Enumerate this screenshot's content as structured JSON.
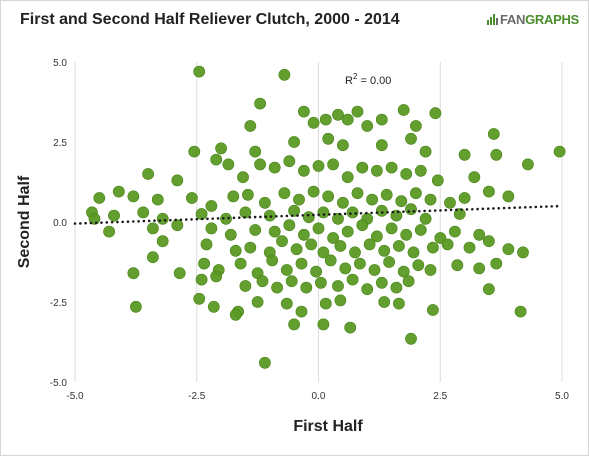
{
  "title": "First and Second Half Reliever Clutch, 2000 - 2014",
  "brand": {
    "part1": "FAN",
    "part2": "GRAPHS",
    "icon": "fangraphs-logo-icon"
  },
  "colors": {
    "point": "#5a9a24",
    "point_edge": "#4a8419",
    "grid": "#dcdcdc",
    "trend": "#1a1a1a",
    "brand_green": "#4a8f2c",
    "brand_gray": "#6c6c6c"
  },
  "chart_data": {
    "type": "scatter",
    "title": "First and Second Half Reliever Clutch, 2000 - 2014",
    "xlabel": "First Half",
    "ylabel": "Second Half",
    "xlim": [
      -5,
      5
    ],
    "ylim": [
      -5,
      5
    ],
    "xticks": [
      "-5.0",
      "-2.5",
      "0.0",
      "2.5",
      "5.0"
    ],
    "yticks": [
      "5.0",
      "2.5",
      "0.0",
      "-2.5",
      "-5.0"
    ],
    "grid": "vertical",
    "annotation": {
      "prefix": "R",
      "sup": "2",
      "suffix": " = 0.00"
    },
    "trendline": {
      "style": "dotted",
      "x": [
        -5,
        5
      ],
      "y": [
        -0.05,
        0.5
      ]
    },
    "points": [
      [
        -2.45,
        4.7
      ],
      [
        -0.7,
        4.6
      ],
      [
        -1.2,
        3.7
      ],
      [
        -0.3,
        3.45
      ],
      [
        0.4,
        3.35
      ],
      [
        0.8,
        3.45
      ],
      [
        1.75,
        3.5
      ],
      [
        2.4,
        3.4
      ],
      [
        -1.4,
        3.0
      ],
      [
        -0.1,
        3.1
      ],
      [
        0.15,
        3.2
      ],
      [
        0.6,
        3.2
      ],
      [
        1.0,
        3.0
      ],
      [
        1.3,
        3.2
      ],
      [
        2.0,
        3.0
      ],
      [
        3.6,
        2.75
      ],
      [
        -2.55,
        2.2
      ],
      [
        -2.0,
        2.3
      ],
      [
        -1.3,
        2.2
      ],
      [
        -0.5,
        2.5
      ],
      [
        0.2,
        2.6
      ],
      [
        0.5,
        2.4
      ],
      [
        1.3,
        2.4
      ],
      [
        1.9,
        2.6
      ],
      [
        2.2,
        2.2
      ],
      [
        3.0,
        2.1
      ],
      [
        3.65,
        2.1
      ],
      [
        -3.5,
        1.5
      ],
      [
        -2.9,
        1.3
      ],
      [
        -2.1,
        1.95
      ],
      [
        -1.85,
        1.8
      ],
      [
        -1.55,
        1.4
      ],
      [
        -1.2,
        1.8
      ],
      [
        -0.9,
        1.7
      ],
      [
        -0.6,
        1.9
      ],
      [
        -0.3,
        1.6
      ],
      [
        0.0,
        1.75
      ],
      [
        0.3,
        1.8
      ],
      [
        0.6,
        1.4
      ],
      [
        0.9,
        1.7
      ],
      [
        1.2,
        1.6
      ],
      [
        1.5,
        1.7
      ],
      [
        1.8,
        1.5
      ],
      [
        2.1,
        1.6
      ],
      [
        2.45,
        1.3
      ],
      [
        3.2,
        1.4
      ],
      [
        4.3,
        1.8
      ],
      [
        4.95,
        2.2
      ],
      [
        -4.5,
        0.75
      ],
      [
        -4.1,
        0.95
      ],
      [
        -3.8,
        0.8
      ],
      [
        -3.3,
        0.7
      ],
      [
        -2.6,
        0.75
      ],
      [
        -2.2,
        0.5
      ],
      [
        -1.75,
        0.8
      ],
      [
        -1.45,
        0.85
      ],
      [
        -1.1,
        0.6
      ],
      [
        -0.7,
        0.9
      ],
      [
        -0.4,
        0.7
      ],
      [
        -0.1,
        0.95
      ],
      [
        0.2,
        0.8
      ],
      [
        0.5,
        0.6
      ],
      [
        0.8,
        0.9
      ],
      [
        1.1,
        0.7
      ],
      [
        1.4,
        0.85
      ],
      [
        1.7,
        0.65
      ],
      [
        2.0,
        0.9
      ],
      [
        2.3,
        0.7
      ],
      [
        2.7,
        0.6
      ],
      [
        3.0,
        0.75
      ],
      [
        3.5,
        0.95
      ],
      [
        3.9,
        0.8
      ],
      [
        -4.65,
        0.3
      ],
      [
        -4.2,
        0.2
      ],
      [
        -3.6,
        0.3
      ],
      [
        -3.2,
        0.1
      ],
      [
        -2.4,
        0.25
      ],
      [
        -1.9,
        0.1
      ],
      [
        -1.5,
        0.3
      ],
      [
        -1.0,
        0.2
      ],
      [
        -0.5,
        0.35
      ],
      [
        -0.2,
        0.15
      ],
      [
        0.1,
        0.3
      ],
      [
        0.4,
        0.1
      ],
      [
        0.7,
        0.3
      ],
      [
        1.0,
        0.1
      ],
      [
        1.3,
        0.35
      ],
      [
        1.6,
        0.2
      ],
      [
        1.9,
        0.4
      ],
      [
        2.2,
        0.1
      ],
      [
        2.9,
        0.25
      ],
      [
        -4.6,
        0.1
      ],
      [
        -4.3,
        -0.3
      ],
      [
        -3.4,
        -0.2
      ],
      [
        -2.9,
        -0.1
      ],
      [
        -2.2,
        -0.2
      ],
      [
        -1.8,
        -0.4
      ],
      [
        -1.3,
        -0.25
      ],
      [
        -0.9,
        -0.3
      ],
      [
        -0.6,
        -0.1
      ],
      [
        -0.3,
        -0.4
      ],
      [
        0.0,
        -0.2
      ],
      [
        0.3,
        -0.5
      ],
      [
        0.6,
        -0.3
      ],
      [
        0.9,
        -0.1
      ],
      [
        1.2,
        -0.45
      ],
      [
        1.5,
        -0.2
      ],
      [
        1.8,
        -0.4
      ],
      [
        2.1,
        -0.25
      ],
      [
        2.5,
        -0.5
      ],
      [
        2.8,
        -0.3
      ],
      [
        3.3,
        -0.4
      ],
      [
        -3.2,
        -0.6
      ],
      [
        -2.3,
        -0.7
      ],
      [
        -1.7,
        -0.9
      ],
      [
        -1.4,
        -0.8
      ],
      [
        -1.0,
        -0.95
      ],
      [
        -0.75,
        -0.6
      ],
      [
        -0.45,
        -0.85
      ],
      [
        -0.15,
        -0.7
      ],
      [
        0.1,
        -0.95
      ],
      [
        0.45,
        -0.75
      ],
      [
        0.75,
        -0.95
      ],
      [
        1.05,
        -0.7
      ],
      [
        1.35,
        -0.9
      ],
      [
        1.65,
        -0.75
      ],
      [
        1.95,
        -0.95
      ],
      [
        2.35,
        -0.8
      ],
      [
        2.65,
        -0.7
      ],
      [
        3.1,
        -0.8
      ],
      [
        3.5,
        -0.6
      ],
      [
        3.9,
        -0.85
      ],
      [
        4.2,
        -0.95
      ],
      [
        -3.4,
        -1.1
      ],
      [
        -2.85,
        -1.6
      ],
      [
        -2.35,
        -1.3
      ],
      [
        -2.05,
        -1.5
      ],
      [
        -1.6,
        -1.3
      ],
      [
        -1.25,
        -1.6
      ],
      [
        -0.95,
        -1.2
      ],
      [
        -0.65,
        -1.5
      ],
      [
        -0.35,
        -1.3
      ],
      [
        -0.05,
        -1.55
      ],
      [
        0.25,
        -1.2
      ],
      [
        0.55,
        -1.45
      ],
      [
        0.85,
        -1.3
      ],
      [
        1.15,
        -1.5
      ],
      [
        1.45,
        -1.25
      ],
      [
        1.75,
        -1.55
      ],
      [
        2.05,
        -1.35
      ],
      [
        2.3,
        -1.5
      ],
      [
        2.85,
        -1.35
      ],
      [
        3.3,
        -1.45
      ],
      [
        3.65,
        -1.3
      ],
      [
        -3.8,
        -1.6
      ],
      [
        -2.4,
        -1.8
      ],
      [
        -2.1,
        -1.7
      ],
      [
        -1.5,
        -2.0
      ],
      [
        -1.15,
        -1.85
      ],
      [
        -0.85,
        -2.05
      ],
      [
        -0.55,
        -1.85
      ],
      [
        -0.25,
        -2.05
      ],
      [
        0.05,
        -1.9
      ],
      [
        0.4,
        -2.0
      ],
      [
        0.7,
        -1.8
      ],
      [
        1.0,
        -2.1
      ],
      [
        1.3,
        -1.9
      ],
      [
        1.6,
        -2.05
      ],
      [
        1.85,
        -1.85
      ],
      [
        3.5,
        -2.1
      ],
      [
        -3.75,
        -2.65
      ],
      [
        -2.45,
        -2.4
      ],
      [
        -2.15,
        -2.65
      ],
      [
        -1.65,
        -2.8
      ],
      [
        -1.25,
        -2.5
      ],
      [
        -0.65,
        -2.55
      ],
      [
        -0.35,
        -2.8
      ],
      [
        0.15,
        -2.55
      ],
      [
        0.45,
        -2.45
      ],
      [
        1.35,
        -2.5
      ],
      [
        1.65,
        -2.55
      ],
      [
        2.35,
        -2.75
      ],
      [
        4.15,
        -2.8
      ],
      [
        -1.7,
        -2.9
      ],
      [
        -0.5,
        -3.2
      ],
      [
        0.1,
        -3.2
      ],
      [
        0.65,
        -3.3
      ],
      [
        1.9,
        -3.65
      ],
      [
        -1.1,
        -4.4
      ]
    ]
  }
}
